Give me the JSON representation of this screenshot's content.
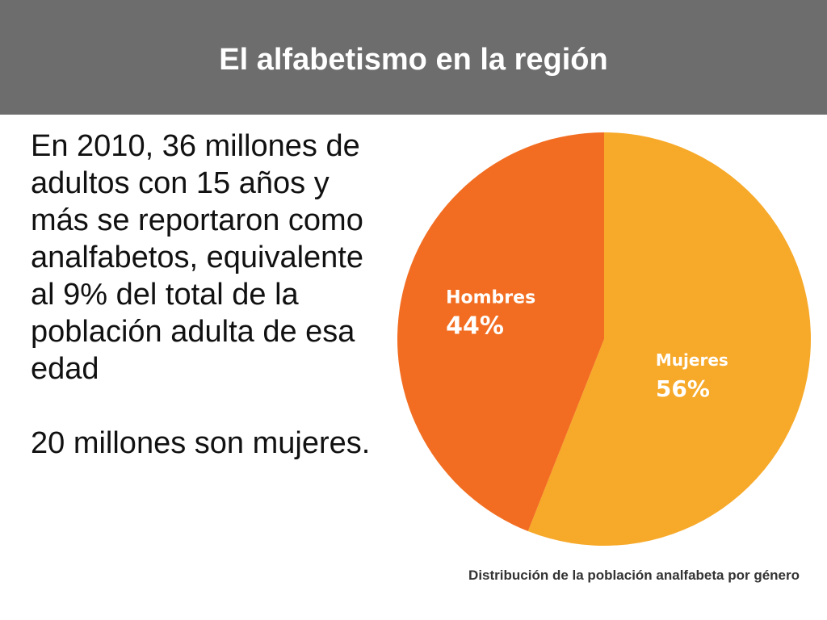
{
  "slide": {
    "title": "El alfabetismo en la región",
    "paragraphs": [
      "En 2010, 36 millones de adultos con 15 años y más se reportaron como analfabetos, equivalente al 9% del total de la población adulta de esa edad",
      "20 millones son mujeres."
    ],
    "caption": "Distribución de la población analfabeta por género"
  },
  "colors": {
    "title_bar": "#6d6d6d",
    "hombres": "#f26d21",
    "mujeres": "#f7a929"
  },
  "chart_data": {
    "type": "pie",
    "title": "Distribución de la población analfabeta por género",
    "slices": [
      {
        "label": "Mujeres",
        "value": 56,
        "value_label": "56%",
        "color": "#f7a929"
      },
      {
        "label": "Hombres",
        "value": 44,
        "value_label": "44%",
        "color": "#f26d21"
      }
    ],
    "start_angle": "12 o'clock",
    "direction": "clockwise",
    "legend": "none"
  }
}
